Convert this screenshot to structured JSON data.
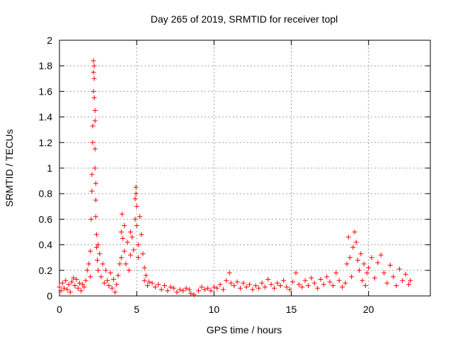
{
  "chart_data": {
    "type": "scatter",
    "title": "Day 265 of 2019, SRMTID for receiver topl",
    "xlabel": "GPS time / hours",
    "ylabel": "SRMTID / TECUs",
    "xlim": [
      0,
      24
    ],
    "ylim": [
      0,
      2
    ],
    "x_ticks": [
      0,
      5,
      10,
      15,
      20
    ],
    "x_tick_labels": [
      "0",
      "5",
      "10",
      "15",
      "20"
    ],
    "y_ticks": [
      0,
      0.2,
      0.4,
      0.6,
      0.8,
      1,
      1.2,
      1.4,
      1.6,
      1.8,
      2
    ],
    "y_tick_labels": [
      "0",
      "0.2",
      "0.4",
      "0.6",
      "0.8",
      "1",
      "1.2",
      "1.4",
      "1.6",
      "1.8",
      "2"
    ],
    "grid": true,
    "marker": "+",
    "color": "#ff0000",
    "series": [
      {
        "name": "SRMTID",
        "points": [
          [
            0.0,
            0.07
          ],
          [
            0.1,
            0.04
          ],
          [
            0.2,
            0.1
          ],
          [
            0.3,
            0.06
          ],
          [
            0.4,
            0.12
          ],
          [
            0.5,
            0.05
          ],
          [
            0.6,
            0.09
          ],
          [
            0.7,
            0.03
          ],
          [
            0.8,
            0.11
          ],
          [
            0.9,
            0.14
          ],
          [
            1.0,
            0.08
          ],
          [
            1.1,
            0.13
          ],
          [
            1.2,
            0.06
          ],
          [
            1.3,
            0.1
          ],
          [
            1.4,
            0.04
          ],
          [
            1.5,
            0.09
          ],
          [
            1.6,
            0.07
          ],
          [
            1.7,
            0.12
          ],
          [
            1.8,
            0.2
          ],
          [
            1.9,
            0.25
          ],
          [
            2.0,
            0.15
          ],
          [
            2.0,
            0.35
          ],
          [
            2.05,
            0.6
          ],
          [
            2.1,
            0.82
          ],
          [
            2.1,
            0.95
          ],
          [
            2.15,
            1.2
          ],
          [
            2.15,
            1.33
          ],
          [
            2.2,
            1.6
          ],
          [
            2.2,
            1.75
          ],
          [
            2.2,
            1.84
          ],
          [
            2.25,
            1.8
          ],
          [
            2.25,
            1.7
          ],
          [
            2.25,
            1.55
          ],
          [
            2.3,
            1.45
          ],
          [
            2.3,
            1.37
          ],
          [
            2.3,
            1.15
          ],
          [
            2.3,
            1.0
          ],
          [
            2.35,
            0.88
          ],
          [
            2.35,
            0.75
          ],
          [
            2.35,
            0.62
          ],
          [
            2.4,
            0.48
          ],
          [
            2.4,
            0.38
          ],
          [
            2.45,
            0.28
          ],
          [
            2.5,
            0.4
          ],
          [
            2.5,
            0.2
          ],
          [
            2.6,
            0.33
          ],
          [
            2.7,
            0.15
          ],
          [
            2.8,
            0.25
          ],
          [
            2.9,
            0.1
          ],
          [
            3.0,
            0.2
          ],
          [
            3.1,
            0.12
          ],
          [
            3.2,
            0.08
          ],
          [
            3.3,
            0.18
          ],
          [
            3.4,
            0.06
          ],
          [
            3.5,
            0.13
          ],
          [
            3.6,
            0.03
          ],
          [
            3.7,
            0.09
          ],
          [
            3.8,
            0.16
          ],
          [
            3.9,
            0.25
          ],
          [
            4.0,
            0.3
          ],
          [
            4.0,
            0.5
          ],
          [
            4.05,
            0.64
          ],
          [
            4.1,
            0.45
          ],
          [
            4.2,
            0.55
          ],
          [
            4.2,
            0.35
          ],
          [
            4.3,
            0.25
          ],
          [
            4.4,
            0.42
          ],
          [
            4.5,
            0.2
          ],
          [
            4.6,
            0.5
          ],
          [
            4.6,
            0.32
          ],
          [
            4.7,
            0.46
          ],
          [
            4.8,
            0.36
          ],
          [
            4.9,
            0.6
          ],
          [
            4.9,
            0.76
          ],
          [
            4.95,
            0.85
          ],
          [
            4.95,
            0.8
          ],
          [
            5.0,
            0.7
          ],
          [
            5.0,
            0.55
          ],
          [
            5.1,
            0.4
          ],
          [
            5.1,
            0.3
          ],
          [
            5.2,
            0.62
          ],
          [
            5.3,
            0.48
          ],
          [
            5.4,
            0.33
          ],
          [
            5.5,
            0.22
          ],
          [
            5.5,
            0.12
          ],
          [
            5.6,
            0.16
          ],
          [
            5.7,
            0.08
          ],
          [
            5.8,
            0.11
          ],
          [
            6.0,
            0.1
          ],
          [
            6.2,
            0.07
          ],
          [
            6.4,
            0.09
          ],
          [
            6.6,
            0.05
          ],
          [
            6.8,
            0.08
          ],
          [
            7.0,
            0.04
          ],
          [
            7.2,
            0.07
          ],
          [
            7.4,
            0.06
          ],
          [
            7.6,
            0.03
          ],
          [
            7.8,
            0.05
          ],
          [
            8.0,
            0.04
          ],
          [
            8.2,
            0.06
          ],
          [
            8.4,
            0.05
          ],
          [
            8.5,
            0.02
          ],
          [
            8.7,
            0.01
          ],
          [
            9.0,
            0.04
          ],
          [
            9.2,
            0.07
          ],
          [
            9.4,
            0.05
          ],
          [
            9.6,
            0.06
          ],
          [
            9.8,
            0.04
          ],
          [
            10.0,
            0.07
          ],
          [
            10.2,
            0.06
          ],
          [
            10.4,
            0.09
          ],
          [
            10.6,
            0.05
          ],
          [
            10.8,
            0.12
          ],
          [
            11.0,
            0.18
          ],
          [
            11.1,
            0.1
          ],
          [
            11.3,
            0.08
          ],
          [
            11.5,
            0.11
          ],
          [
            11.7,
            0.06
          ],
          [
            11.9,
            0.1
          ],
          [
            12.1,
            0.07
          ],
          [
            12.3,
            0.09
          ],
          [
            12.5,
            0.05
          ],
          [
            12.7,
            0.08
          ],
          [
            12.9,
            0.06
          ],
          [
            13.1,
            0.1
          ],
          [
            13.3,
            0.07
          ],
          [
            13.5,
            0.13
          ],
          [
            13.7,
            0.09
          ],
          [
            13.9,
            0.06
          ],
          [
            14.1,
            0.1
          ],
          [
            14.3,
            0.08
          ],
          [
            14.5,
            0.12
          ],
          [
            14.7,
            0.07
          ],
          [
            14.9,
            0.05
          ],
          [
            15.1,
            0.11
          ],
          [
            15.3,
            0.18
          ],
          [
            15.5,
            0.09
          ],
          [
            15.7,
            0.07
          ],
          [
            15.9,
            0.12
          ],
          [
            16.1,
            0.08
          ],
          [
            16.3,
            0.14
          ],
          [
            16.5,
            0.1
          ],
          [
            16.7,
            0.06
          ],
          [
            16.9,
            0.13
          ],
          [
            17.1,
            0.09
          ],
          [
            17.3,
            0.15
          ],
          [
            17.5,
            0.11
          ],
          [
            17.7,
            0.08
          ],
          [
            17.9,
            0.18
          ],
          [
            18.1,
            0.12
          ],
          [
            18.3,
            0.07
          ],
          [
            18.5,
            0.1
          ],
          [
            18.6,
            0.25
          ],
          [
            18.7,
            0.46
          ],
          [
            18.8,
            0.3
          ],
          [
            18.9,
            0.15
          ],
          [
            19.0,
            0.38
          ],
          [
            19.1,
            0.5
          ],
          [
            19.2,
            0.42
          ],
          [
            19.3,
            0.28
          ],
          [
            19.4,
            0.2
          ],
          [
            19.5,
            0.33
          ],
          [
            19.6,
            0.12
          ],
          [
            19.7,
            0.25
          ],
          [
            19.8,
            0.08
          ],
          [
            19.9,
            0.18
          ],
          [
            20.0,
            0.22
          ],
          [
            20.2,
            0.3
          ],
          [
            20.4,
            0.14
          ],
          [
            20.6,
            0.26
          ],
          [
            20.8,
            0.32
          ],
          [
            21.0,
            0.18
          ],
          [
            21.2,
            0.1
          ],
          [
            21.4,
            0.24
          ],
          [
            21.6,
            0.15
          ],
          [
            21.8,
            0.08
          ],
          [
            22.0,
            0.21
          ],
          [
            22.2,
            0.12
          ],
          [
            22.4,
            0.17
          ],
          [
            22.6,
            0.09
          ],
          [
            22.7,
            0.12
          ]
        ]
      }
    ]
  }
}
